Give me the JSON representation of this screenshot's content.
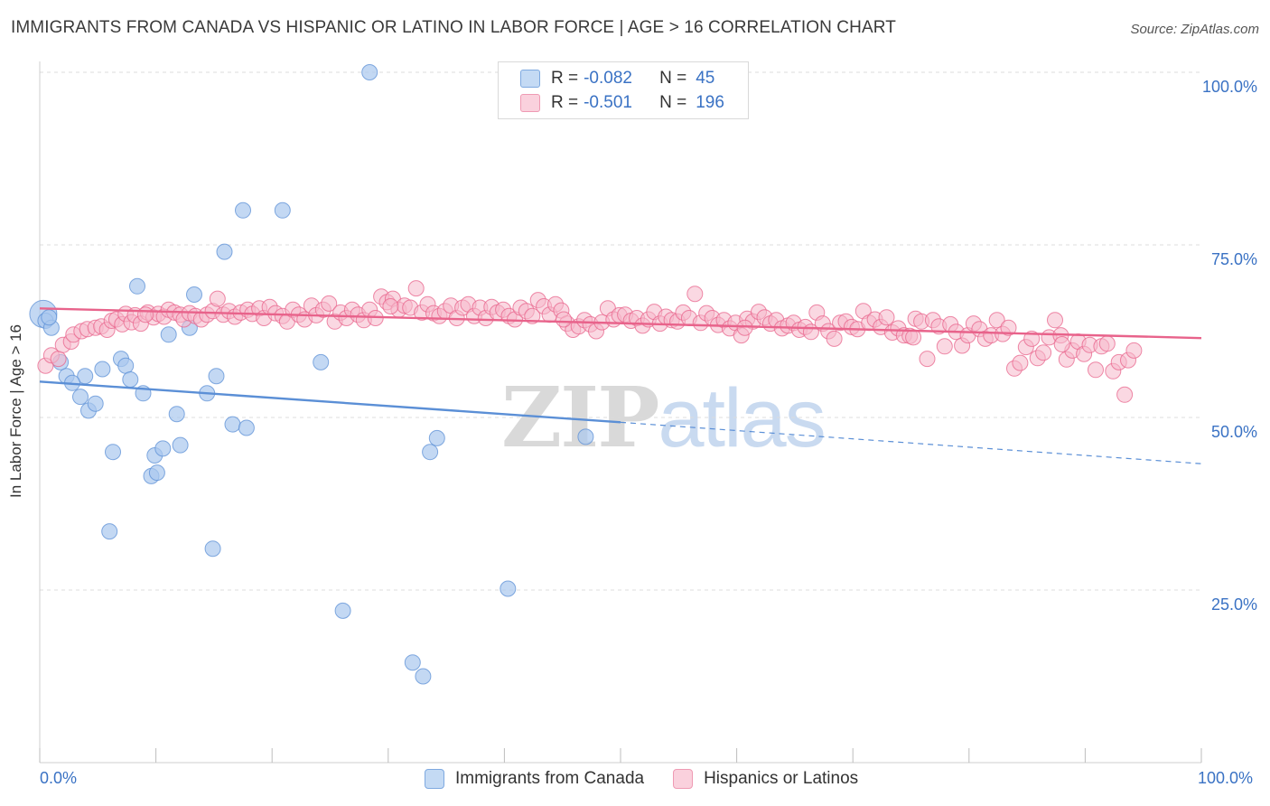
{
  "header": {
    "title": "IMMIGRANTS FROM CANADA VS HISPANIC OR LATINO IN LABOR FORCE | AGE > 16 CORRELATION CHART",
    "source": "Source: ZipAtlas.com"
  },
  "watermark": {
    "zip": "ZIP",
    "atlas": "atlas"
  },
  "legend": {
    "r_label": "R =",
    "n_label": "N =",
    "rows": [
      {
        "r": "-0.082",
        "n": "45",
        "color": "#a9c8ee"
      },
      {
        "r": "-0.501",
        "n": "196",
        "color": "#f5b8ca"
      }
    ]
  },
  "bottom_legend": [
    {
      "label": "Immigrants from Canada",
      "color": "#a9c8ee"
    },
    {
      "label": "Hispanics or Latinos",
      "color": "#f5b8ca"
    }
  ],
  "chart_data": {
    "type": "scatter",
    "title": "IMMIGRANTS FROM CANADA VS HISPANIC OR LATINO IN LABOR FORCE | AGE > 16 CORRELATION CHART",
    "ylabel": "In Labor Force | Age > 16",
    "xlim": [
      0,
      100
    ],
    "ylim": [
      0,
      100
    ],
    "x_tick_labels": [
      "0.0%",
      "100.0%"
    ],
    "y_tick_labels": [
      "100.0%",
      "75.0%",
      "50.0%",
      "25.0%"
    ],
    "y_ticks": [
      100,
      75,
      50,
      25
    ],
    "grid": true,
    "legend_placement": "top-center",
    "series": [
      {
        "name": "Immigrants from Canada",
        "color": "#5b8fd6",
        "fill": "#a9c8ee",
        "r": "-0.082",
        "n": "45",
        "trend": {
          "x0": 0,
          "y0": 55.2,
          "x1": 50,
          "y1": 49.3,
          "dashed_to_x": 100,
          "dashed_to_y": 43.3
        },
        "points": [
          [
            0.3,
            65.0
          ],
          [
            0.5,
            64.0
          ],
          [
            1.0,
            63.0
          ],
          [
            1.8,
            58.0
          ],
          [
            2.3,
            56.0
          ],
          [
            3.5,
            53.0
          ],
          [
            3.9,
            56.0
          ],
          [
            2.8,
            55.0
          ],
          [
            4.2,
            51.0
          ],
          [
            4.8,
            52.0
          ],
          [
            5.4,
            57.0
          ],
          [
            6.3,
            45.0
          ],
          [
            6.0,
            33.5
          ],
          [
            7.0,
            58.5
          ],
          [
            7.4,
            57.5
          ],
          [
            7.8,
            55.5
          ],
          [
            8.4,
            69.0
          ],
          [
            8.9,
            53.5
          ],
          [
            9.6,
            41.5
          ],
          [
            9.9,
            44.5
          ],
          [
            10.1,
            42.0
          ],
          [
            10.6,
            45.5
          ],
          [
            11.1,
            62.0
          ],
          [
            11.8,
            50.5
          ],
          [
            12.1,
            46.0
          ],
          [
            12.9,
            63.0
          ],
          [
            13.3,
            67.8
          ],
          [
            14.4,
            53.5
          ],
          [
            14.9,
            31.0
          ],
          [
            15.2,
            56.0
          ],
          [
            15.9,
            74.0
          ],
          [
            16.6,
            49.0
          ],
          [
            17.5,
            80.0
          ],
          [
            17.8,
            48.5
          ],
          [
            20.9,
            80.0
          ],
          [
            24.2,
            58.0
          ],
          [
            26.1,
            22.0
          ],
          [
            28.4,
            100.0
          ],
          [
            32.1,
            14.5
          ],
          [
            33.0,
            12.5
          ],
          [
            33.6,
            45.0
          ],
          [
            34.2,
            47.0
          ],
          [
            40.3,
            25.2
          ],
          [
            47.0,
            47.2
          ],
          [
            0.8,
            64.5
          ]
        ]
      },
      {
        "name": "Hispanics or Latinos",
        "color": "#e8638b",
        "fill": "#f5b8ca",
        "r": "-0.501",
        "n": "196",
        "trend": {
          "x0": 0,
          "y0": 65.8,
          "x1": 100,
          "y1": 61.5
        },
        "points": [
          [
            0.5,
            57.5
          ],
          [
            1.0,
            59.0
          ],
          [
            1.6,
            58.5
          ],
          [
            2.0,
            60.5
          ],
          [
            2.7,
            61.0
          ],
          [
            2.9,
            62.0
          ],
          [
            3.6,
            62.5
          ],
          [
            4.1,
            62.8
          ],
          [
            4.8,
            63.0
          ],
          [
            5.3,
            63.2
          ],
          [
            5.8,
            62.7
          ],
          [
            6.2,
            64.0
          ],
          [
            6.6,
            64.2
          ],
          [
            7.1,
            63.5
          ],
          [
            7.4,
            65.0
          ],
          [
            7.9,
            63.8
          ],
          [
            8.2,
            64.8
          ],
          [
            8.7,
            63.6
          ],
          [
            9.3,
            65.2
          ],
          [
            9.8,
            64.5
          ],
          [
            10.2,
            65.0
          ],
          [
            10.7,
            64.6
          ],
          [
            11.1,
            65.6
          ],
          [
            11.6,
            65.2
          ],
          [
            12.1,
            64.9
          ],
          [
            12.4,
            64.2
          ],
          [
            12.9,
            65.1
          ],
          [
            13.4,
            64.7
          ],
          [
            13.9,
            64.2
          ],
          [
            14.4,
            64.9
          ],
          [
            14.9,
            65.4
          ],
          [
            15.3,
            67.2
          ],
          [
            15.8,
            64.9
          ],
          [
            16.3,
            65.4
          ],
          [
            16.8,
            64.6
          ],
          [
            17.3,
            65.2
          ],
          [
            17.9,
            65.6
          ],
          [
            18.3,
            65.0
          ],
          [
            18.9,
            65.8
          ],
          [
            19.3,
            64.4
          ],
          [
            19.8,
            66.0
          ],
          [
            20.3,
            65.1
          ],
          [
            20.9,
            64.7
          ],
          [
            21.3,
            63.9
          ],
          [
            21.8,
            65.6
          ],
          [
            22.3,
            64.9
          ],
          [
            22.8,
            64.2
          ],
          [
            23.4,
            66.2
          ],
          [
            23.8,
            64.8
          ],
          [
            24.4,
            65.6
          ],
          [
            24.9,
            66.5
          ],
          [
            25.4,
            63.9
          ],
          [
            25.9,
            65.2
          ],
          [
            26.4,
            64.4
          ],
          [
            26.9,
            65.6
          ],
          [
            27.4,
            64.9
          ],
          [
            27.9,
            64.1
          ],
          [
            28.4,
            65.6
          ],
          [
            28.9,
            64.4
          ],
          [
            29.4,
            67.5
          ],
          [
            29.9,
            66.7
          ],
          [
            30.4,
            67.2
          ],
          [
            30.9,
            65.6
          ],
          [
            31.4,
            66.2
          ],
          [
            31.9,
            65.9
          ],
          [
            32.4,
            68.7
          ],
          [
            32.9,
            65.2
          ],
          [
            33.4,
            66.4
          ],
          [
            33.9,
            65.1
          ],
          [
            34.4,
            64.7
          ],
          [
            34.9,
            65.4
          ],
          [
            35.4,
            66.2
          ],
          [
            35.9,
            64.4
          ],
          [
            36.4,
            65.9
          ],
          [
            36.9,
            66.4
          ],
          [
            37.4,
            64.7
          ],
          [
            37.9,
            65.9
          ],
          [
            38.4,
            64.4
          ],
          [
            38.9,
            66.0
          ],
          [
            39.4,
            65.2
          ],
          [
            39.9,
            65.6
          ],
          [
            40.4,
            64.7
          ],
          [
            40.9,
            64.2
          ],
          [
            41.4,
            65.9
          ],
          [
            41.9,
            65.4
          ],
          [
            42.4,
            64.7
          ],
          [
            42.9,
            67.0
          ],
          [
            43.4,
            66.1
          ],
          [
            43.9,
            64.9
          ],
          [
            44.4,
            66.4
          ],
          [
            44.9,
            65.5
          ],
          [
            45.4,
            63.6
          ],
          [
            45.9,
            62.7
          ],
          [
            46.4,
            63.2
          ],
          [
            46.9,
            64.1
          ],
          [
            47.4,
            63.5
          ],
          [
            47.9,
            62.5
          ],
          [
            48.4,
            63.8
          ],
          [
            48.9,
            65.8
          ],
          [
            49.4,
            64.2
          ],
          [
            49.9,
            64.8
          ],
          [
            50.4,
            64.9
          ],
          [
            50.9,
            64.0
          ],
          [
            51.4,
            64.4
          ],
          [
            51.9,
            63.3
          ],
          [
            52.4,
            64.2
          ],
          [
            52.9,
            65.3
          ],
          [
            53.4,
            63.6
          ],
          [
            53.9,
            64.6
          ],
          [
            54.4,
            64.1
          ],
          [
            54.9,
            63.9
          ],
          [
            55.4,
            65.2
          ],
          [
            55.9,
            64.4
          ],
          [
            56.4,
            67.9
          ],
          [
            56.9,
            63.7
          ],
          [
            57.4,
            65.1
          ],
          [
            57.9,
            64.4
          ],
          [
            58.4,
            63.4
          ],
          [
            58.9,
            64.1
          ],
          [
            59.4,
            62.9
          ],
          [
            59.9,
            63.7
          ],
          [
            60.4,
            61.9
          ],
          [
            60.9,
            64.3
          ],
          [
            61.4,
            63.9
          ],
          [
            61.9,
            65.3
          ],
          [
            62.4,
            64.5
          ],
          [
            62.9,
            63.6
          ],
          [
            63.4,
            64.1
          ],
          [
            63.9,
            62.9
          ],
          [
            64.4,
            63.3
          ],
          [
            64.9,
            63.7
          ],
          [
            65.4,
            62.7
          ],
          [
            65.9,
            63.1
          ],
          [
            66.4,
            62.4
          ],
          [
            66.9,
            65.2
          ],
          [
            67.4,
            63.6
          ],
          [
            67.9,
            62.5
          ],
          [
            68.4,
            61.4
          ],
          [
            68.9,
            63.7
          ],
          [
            69.4,
            63.9
          ],
          [
            69.9,
            63.1
          ],
          [
            70.4,
            62.8
          ],
          [
            70.9,
            65.4
          ],
          [
            71.4,
            63.7
          ],
          [
            71.9,
            64.2
          ],
          [
            72.4,
            63.1
          ],
          [
            72.9,
            64.5
          ],
          [
            73.4,
            62.3
          ],
          [
            73.9,
            62.9
          ],
          [
            74.4,
            61.9
          ],
          [
            74.9,
            61.8
          ],
          [
            75.4,
            64.3
          ],
          [
            75.9,
            63.9
          ],
          [
            76.4,
            58.5
          ],
          [
            76.9,
            64.1
          ],
          [
            77.4,
            63.2
          ],
          [
            77.9,
            60.3
          ],
          [
            78.4,
            63.5
          ],
          [
            78.9,
            62.4
          ],
          [
            79.4,
            60.4
          ],
          [
            79.9,
            61.9
          ],
          [
            80.4,
            63.6
          ],
          [
            80.9,
            62.8
          ],
          [
            81.4,
            61.4
          ],
          [
            81.9,
            61.9
          ],
          [
            82.4,
            64.1
          ],
          [
            82.9,
            62.1
          ],
          [
            83.4,
            63.0
          ],
          [
            83.9,
            57.1
          ],
          [
            84.4,
            57.9
          ],
          [
            84.9,
            60.2
          ],
          [
            85.4,
            61.4
          ],
          [
            85.9,
            58.6
          ],
          [
            86.4,
            59.4
          ],
          [
            86.9,
            61.6
          ],
          [
            87.4,
            64.1
          ],
          [
            87.9,
            61.9
          ],
          [
            88.4,
            58.4
          ],
          [
            88.9,
            59.7
          ],
          [
            89.4,
            61.0
          ],
          [
            89.9,
            59.2
          ],
          [
            90.4,
            60.5
          ],
          [
            90.9,
            56.9
          ],
          [
            91.4,
            60.3
          ],
          [
            91.9,
            60.7
          ],
          [
            92.4,
            56.7
          ],
          [
            92.9,
            58.0
          ],
          [
            93.4,
            53.3
          ],
          [
            93.7,
            58.3
          ],
          [
            94.2,
            59.7
          ],
          [
            9.1,
            64.9
          ],
          [
            30.2,
            66.1
          ],
          [
            45.1,
            64.2
          ],
          [
            60.7,
            63.0
          ],
          [
            75.2,
            61.6
          ],
          [
            88.0,
            60.6
          ]
        ]
      }
    ]
  }
}
